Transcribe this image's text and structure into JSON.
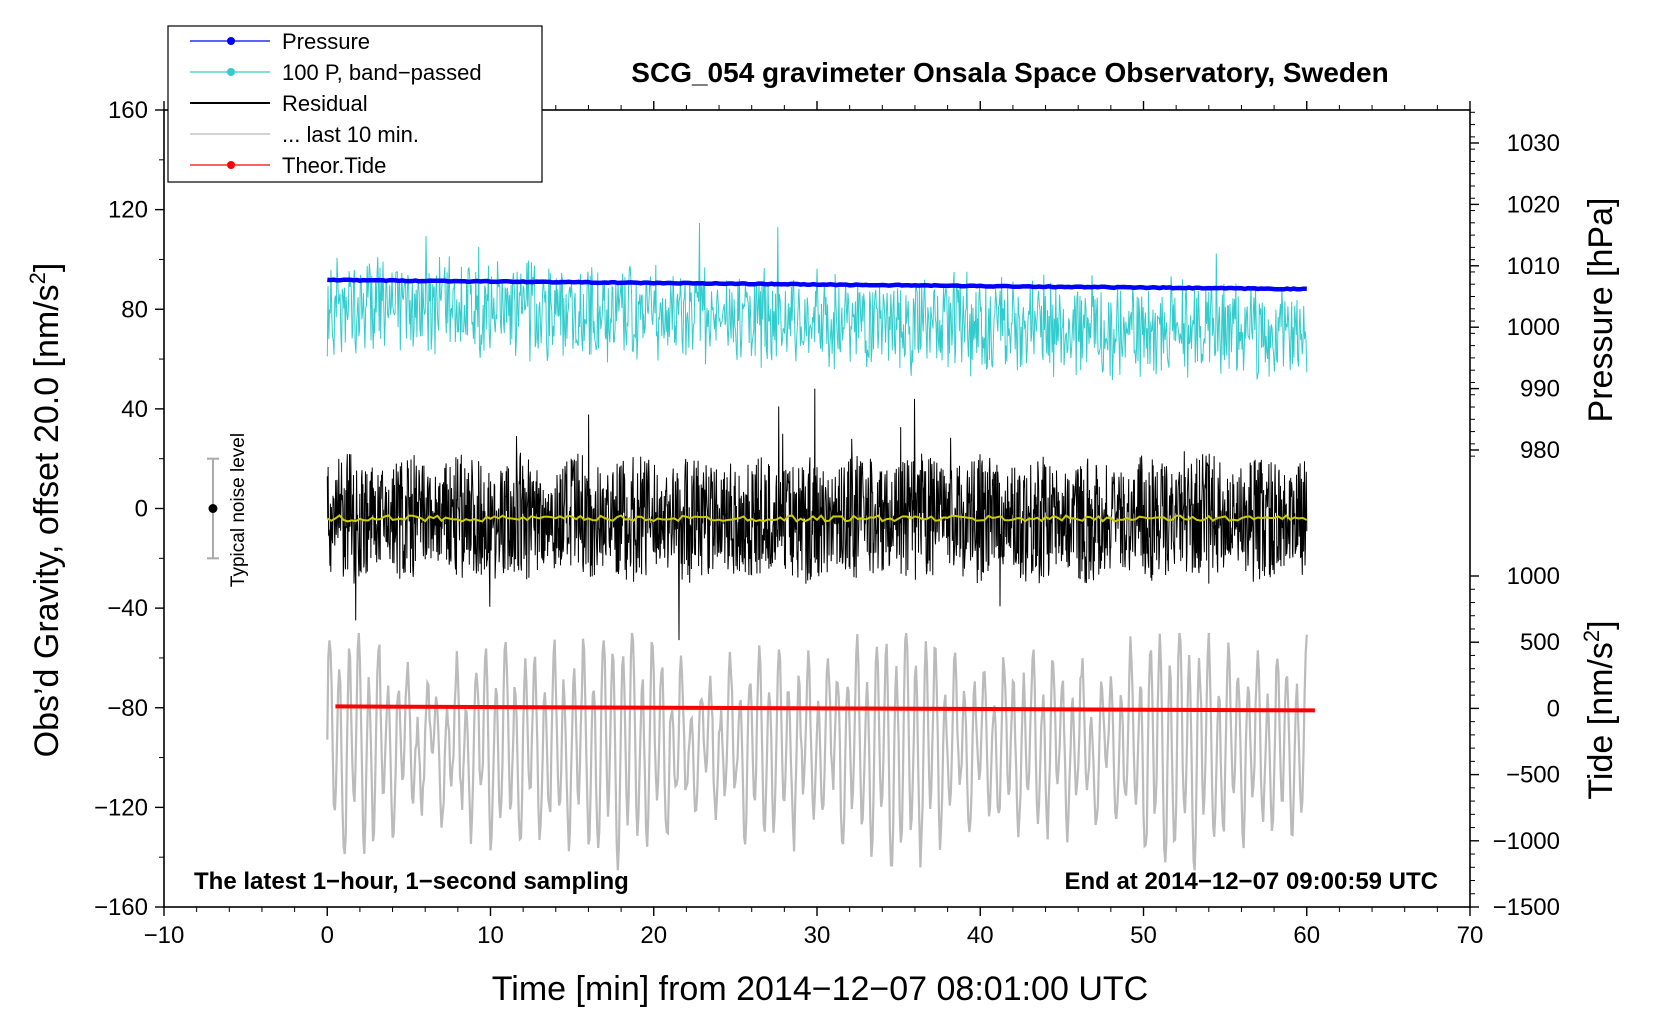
{
  "chart_data": {
    "type": "line",
    "title": "SCG_054 gravimeter Onsala Space Observatory, Sweden",
    "xlabel": "Time [min] from 2014−12−07 08:01:00 UTC",
    "ylabel": "Obs’d Gravity, offset 20.0 [nm/s²]",
    "ylabel_parts": {
      "main": "Obs’d Gravity, offset 20.0 [nm/s",
      "sup": "2",
      "end": "]"
    },
    "xlim": [
      -10,
      70
    ],
    "ylim": [
      -160,
      160
    ],
    "x_ticks": [
      "−10",
      "0",
      "10",
      "20",
      "30",
      "40",
      "50",
      "60",
      "70"
    ],
    "x_tick_values": [
      -10,
      0,
      10,
      20,
      30,
      40,
      50,
      60,
      70
    ],
    "y_ticks": [
      "−160",
      "−120",
      "−80",
      "−40",
      "0",
      "40",
      "80",
      "120",
      "160"
    ],
    "y_tick_values": [
      -160,
      -120,
      -80,
      -40,
      0,
      40,
      80,
      120,
      160
    ],
    "pressure_axis": {
      "label": "Pressure [hPa]",
      "range": [
        980,
        1030
      ],
      "ticks": [
        "980",
        "990",
        "1000",
        "1010",
        "1020",
        "1030"
      ],
      "tick_values": [
        980,
        990,
        1000,
        1010,
        1020,
        1030
      ]
    },
    "tide_axis": {
      "label_parts": {
        "main": "Tide [nm/s",
        "sup": "2",
        "end": "]"
      },
      "range": [
        -1500,
        1000
      ],
      "ticks": [
        "−1500",
        "−1000",
        "−500",
        "0",
        "500",
        "1000"
      ],
      "tick_values": [
        -1500,
        -1000,
        -500,
        0,
        500,
        1000
      ]
    },
    "legend": [
      {
        "label": "Pressure",
        "color": "#0000ff",
        "marker": true
      },
      {
        "label": "100 P, band−passed",
        "color": "#33cccc",
        "marker": true
      },
      {
        "label": "Residual",
        "color": "#000000",
        "marker": false
      },
      {
        "label": "... last 10 min.",
        "color": "#bbbbbb",
        "marker": false
      },
      {
        "label": "Theor.Tide",
        "color": "#ff0000",
        "marker": true
      }
    ],
    "series": [
      {
        "name": "Pressure",
        "color": "#0000ff",
        "axis": "pressure",
        "x": [
          0,
          60
        ],
        "values": [
          1007.7,
          1006.2
        ]
      },
      {
        "name": "100 P, band−passed",
        "color": "#33cccc",
        "axis": "gravity",
        "center_start": 82,
        "center_end": 70,
        "amplitude": 20,
        "x_range": [
          0,
          60
        ]
      },
      {
        "name": "Residual",
        "color": "#000000",
        "axis": "gravity",
        "center": -4,
        "amplitude": 24,
        "x_range": [
          0,
          60
        ]
      },
      {
        "name": "... last 10 min.",
        "color": "#bbbbbb",
        "axis": "gravity",
        "center": -95,
        "amplitude": 32,
        "x_range": [
          0,
          60
        ]
      },
      {
        "name": "Residual mean",
        "color": "#cccc00",
        "axis": "gravity",
        "x": [
          0,
          60
        ],
        "values": [
          -4,
          -4
        ]
      },
      {
        "name": "Theor.Tide",
        "color": "#ff0000",
        "axis": "tide",
        "x": [
          0.5,
          60.5
        ],
        "values": [
          15,
          -15
        ]
      }
    ],
    "noise_bar": {
      "label": "Typical noise level",
      "x": -7,
      "center": 0,
      "half_range": 20
    },
    "notes": {
      "left": "The latest 1−hour, 1−second sampling",
      "right": "End at 2014−12−07 09:00:59 UTC"
    }
  }
}
